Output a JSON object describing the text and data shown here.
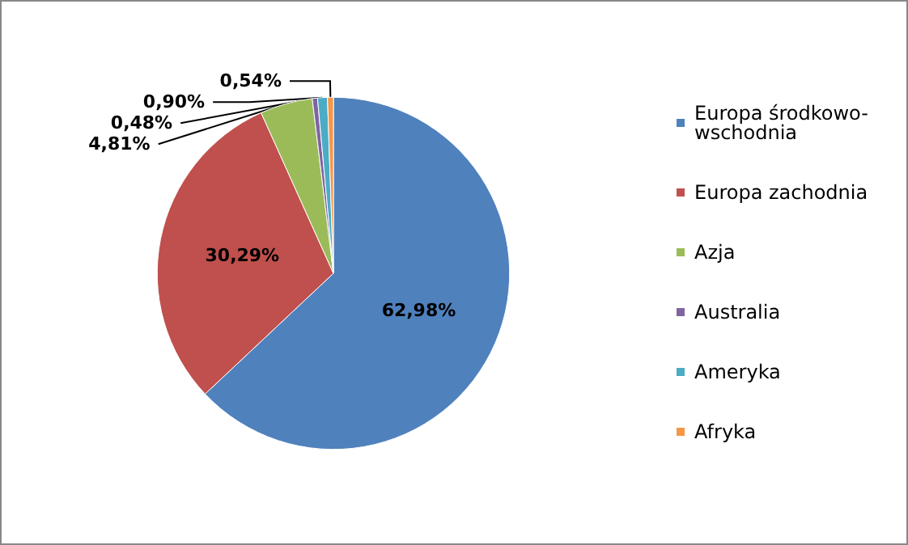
{
  "chart_data": {
    "type": "pie",
    "categories": [
      "Europa środkowo-wschodnia",
      "Europa zachodnia",
      "Azja",
      "Australia",
      "Ameryka",
      "Afryka"
    ],
    "values": [
      62.98,
      30.29,
      4.81,
      0.48,
      0.9,
      0.54
    ],
    "value_labels": [
      "62,98%",
      "30,29%",
      "4,81%",
      "0,48%",
      "0,90%",
      "0,54%"
    ],
    "colors": [
      "#4f81bd",
      "#c0504d",
      "#9bbb59",
      "#8064a2",
      "#4bacc6",
      "#f79646"
    ],
    "legend": "right"
  }
}
